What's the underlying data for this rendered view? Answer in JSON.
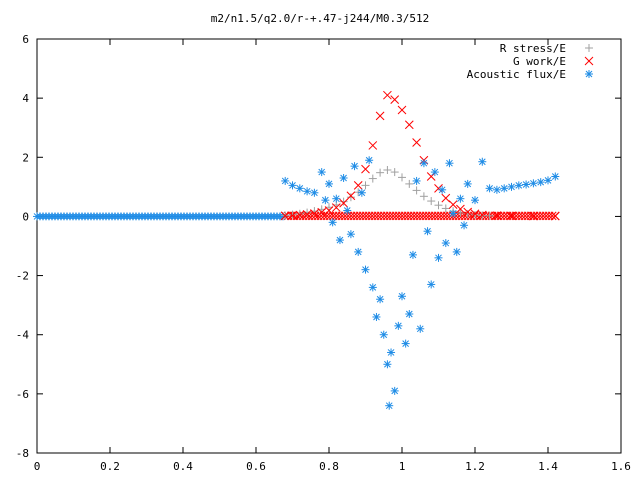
{
  "chart_data": {
    "type": "scatter",
    "title": "m2/n1.5/q2.0/r-+.47-j244/M0.3/512",
    "xlabel": "",
    "ylabel": "",
    "xlim": [
      0,
      1.6
    ],
    "ylim": [
      -8,
      6
    ],
    "xticks": [
      "0",
      "0.2",
      "0.4",
      "0.6",
      "0.8",
      "1",
      "1.2",
      "1.4",
      "1.6"
    ],
    "yticks": [
      "6",
      "4",
      "2",
      "0",
      "-2",
      "-4",
      "-6",
      "-8"
    ],
    "grid": false,
    "legend_position": "top-right",
    "series": [
      {
        "name": "R stress/E",
        "marker": "plus",
        "color": "#a0a0a0",
        "points": [
          [
            0.68,
            0.03
          ],
          [
            0.7,
            0.06
          ],
          [
            0.72,
            0.09
          ],
          [
            0.74,
            0.13
          ],
          [
            0.76,
            0.18
          ],
          [
            0.78,
            0.24
          ],
          [
            0.8,
            0.31
          ],
          [
            0.82,
            0.39
          ],
          [
            0.84,
            0.5
          ],
          [
            0.86,
            0.65
          ],
          [
            0.88,
            0.82
          ],
          [
            0.9,
            1.05
          ],
          [
            0.92,
            1.28
          ],
          [
            0.94,
            1.48
          ],
          [
            0.96,
            1.57
          ],
          [
            0.98,
            1.5
          ],
          [
            1.0,
            1.32
          ],
          [
            1.02,
            1.1
          ],
          [
            1.04,
            0.88
          ],
          [
            1.06,
            0.68
          ],
          [
            1.08,
            0.52
          ],
          [
            1.1,
            0.38
          ],
          [
            1.12,
            0.27
          ],
          [
            1.14,
            0.18
          ],
          [
            1.16,
            0.12
          ],
          [
            1.18,
            0.08
          ],
          [
            1.2,
            0.05
          ],
          [
            1.22,
            0.03
          ],
          [
            1.24,
            0.02
          ]
        ]
      },
      {
        "name": "G work/E",
        "marker": "cross",
        "color": "#ff0000",
        "points": [
          [
            0.68,
            0.02
          ],
          [
            0.7,
            0.03
          ],
          [
            0.72,
            0.05
          ],
          [
            0.74,
            0.07
          ],
          [
            0.76,
            0.1
          ],
          [
            0.78,
            0.14
          ],
          [
            0.8,
            0.2
          ],
          [
            0.82,
            0.3
          ],
          [
            0.84,
            0.45
          ],
          [
            0.86,
            0.7
          ],
          [
            0.88,
            1.05
          ],
          [
            0.9,
            1.6
          ],
          [
            0.92,
            2.4
          ],
          [
            0.94,
            3.4
          ],
          [
            0.96,
            4.1
          ],
          [
            0.98,
            3.95
          ],
          [
            1.0,
            3.6
          ],
          [
            1.02,
            3.1
          ],
          [
            1.04,
            2.5
          ],
          [
            1.06,
            1.9
          ],
          [
            1.08,
            1.35
          ],
          [
            1.1,
            0.95
          ],
          [
            1.12,
            0.62
          ],
          [
            1.14,
            0.4
          ],
          [
            1.16,
            0.25
          ],
          [
            1.18,
            0.15
          ],
          [
            1.2,
            0.09
          ],
          [
            1.22,
            0.05
          ],
          [
            1.26,
            0.03
          ],
          [
            1.3,
            0.02
          ],
          [
            1.36,
            0.01
          ],
          [
            1.42,
            0.01
          ]
        ]
      },
      {
        "name": "Acoustic flux/E",
        "marker": "star",
        "color": "#1e8ce6",
        "points": [
          [
            0.68,
            1.2
          ],
          [
            0.7,
            1.05
          ],
          [
            0.72,
            0.95
          ],
          [
            0.74,
            0.85
          ],
          [
            0.76,
            0.8
          ],
          [
            0.78,
            1.5
          ],
          [
            0.79,
            0.55
          ],
          [
            0.8,
            1.1
          ],
          [
            0.81,
            -0.2
          ],
          [
            0.82,
            0.6
          ],
          [
            0.83,
            -0.8
          ],
          [
            0.84,
            1.3
          ],
          [
            0.85,
            0.2
          ],
          [
            0.86,
            -0.6
          ],
          [
            0.87,
            1.7
          ],
          [
            0.88,
            -1.2
          ],
          [
            0.89,
            0.8
          ],
          [
            0.9,
            -1.8
          ],
          [
            0.91,
            1.9
          ],
          [
            0.92,
            -2.4
          ],
          [
            0.93,
            -3.4
          ],
          [
            0.94,
            -2.8
          ],
          [
            0.95,
            -4.0
          ],
          [
            0.96,
            -5.0
          ],
          [
            0.965,
            -6.4
          ],
          [
            0.97,
            -4.6
          ],
          [
            0.98,
            -5.9
          ],
          [
            0.99,
            -3.7
          ],
          [
            1.0,
            -2.7
          ],
          [
            1.01,
            -4.3
          ],
          [
            1.02,
            -3.3
          ],
          [
            1.03,
            -1.3
          ],
          [
            1.04,
            1.2
          ],
          [
            1.05,
            -3.8
          ],
          [
            1.06,
            1.8
          ],
          [
            1.07,
            -0.5
          ],
          [
            1.08,
            -2.3
          ],
          [
            1.09,
            1.5
          ],
          [
            1.1,
            -1.4
          ],
          [
            1.11,
            0.9
          ],
          [
            1.12,
            -0.9
          ],
          [
            1.13,
            1.8
          ],
          [
            1.14,
            0.1
          ],
          [
            1.15,
            -1.2
          ],
          [
            1.16,
            0.6
          ],
          [
            1.17,
            -0.3
          ],
          [
            1.18,
            1.1
          ],
          [
            1.2,
            0.55
          ],
          [
            1.22,
            1.85
          ],
          [
            1.24,
            0.95
          ],
          [
            1.26,
            0.9
          ],
          [
            1.28,
            0.95
          ],
          [
            1.3,
            1.0
          ],
          [
            1.32,
            1.05
          ],
          [
            1.34,
            1.08
          ],
          [
            1.36,
            1.12
          ],
          [
            1.38,
            1.16
          ],
          [
            1.4,
            1.22
          ],
          [
            1.42,
            1.35
          ]
        ]
      }
    ],
    "baseline_segments": [
      {
        "series": "Acoustic flux/E",
        "x": [
          0.0,
          0.68
        ],
        "y": 0
      },
      {
        "series": "G work/E",
        "x": [
          0.68,
          1.42
        ],
        "y": 0.02
      }
    ]
  }
}
